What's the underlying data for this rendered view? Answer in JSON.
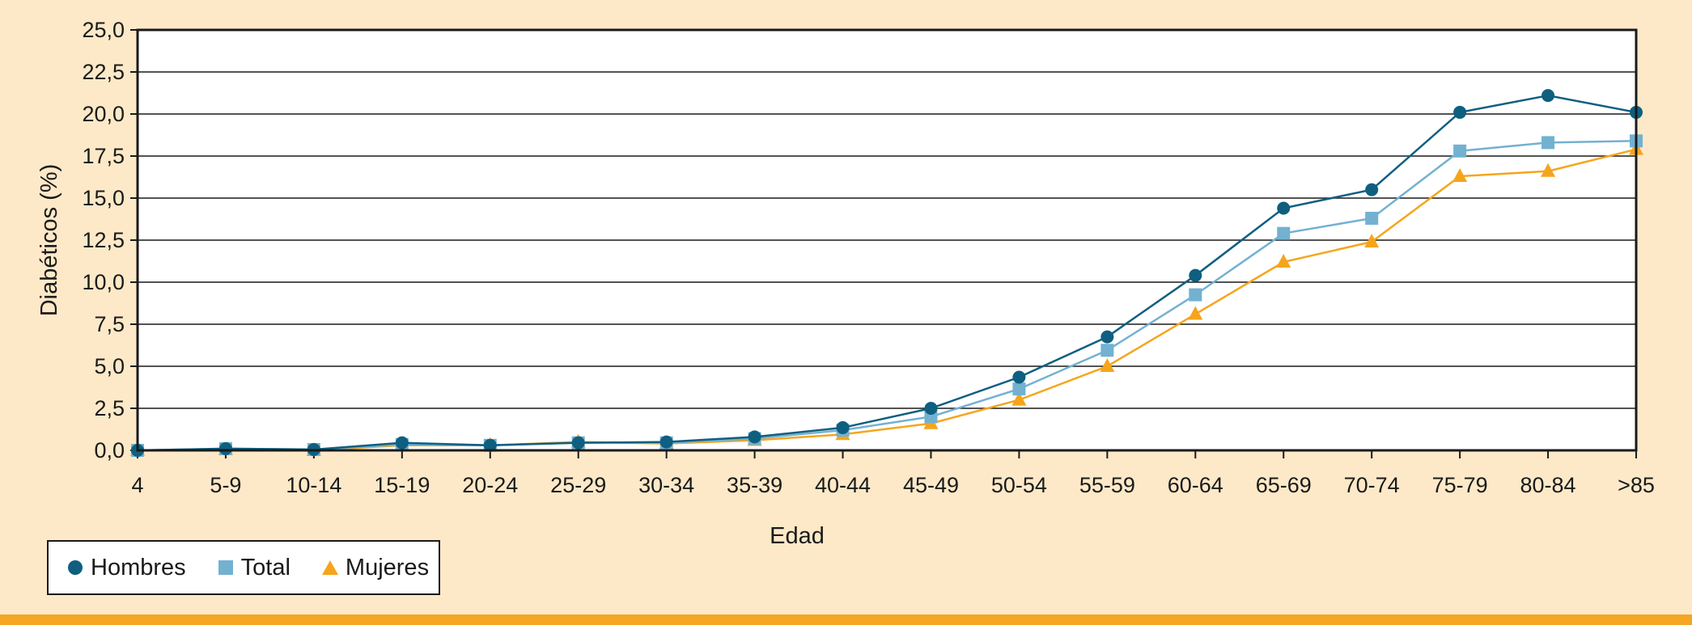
{
  "colors": {
    "background": "#fde9c8",
    "plot_background": "#ffffff",
    "bottom_bar": "#f5a623",
    "series": {
      "Hombres": "#0f5f80",
      "Total": "#73b1d1",
      "Mujeres": "#f5a51c"
    }
  },
  "legend": {
    "items": [
      {
        "label": "Hombres",
        "marker": "circle",
        "color": "#0f5f80"
      },
      {
        "label": "Total",
        "marker": "square",
        "color": "#73b1d1"
      },
      {
        "label": "Mujeres",
        "marker": "triangle",
        "color": "#f5a51c"
      }
    ]
  },
  "chart_data": {
    "type": "line",
    "title": "",
    "xlabel": "Edad",
    "ylabel": "Diabéticos (%)",
    "categories": [
      "4",
      "5-9",
      "10-14",
      "15-19",
      "20-24",
      "25-29",
      "30-34",
      "35-39",
      "40-44",
      "45-49",
      "50-54",
      "55-59",
      "60-64",
      "65-69",
      "70-74",
      "75-79",
      "80-84",
      ">85"
    ],
    "ylim": [
      0,
      25
    ],
    "yticks": [
      "0,0",
      "2,5",
      "5,0",
      "7,5",
      "10,0",
      "12,5",
      "15,0",
      "17,5",
      "20,0",
      "22,5",
      "25,0"
    ],
    "grid": true,
    "legend_position": "bottom-left",
    "series": [
      {
        "name": "Hombres",
        "marker": "circle",
        "color": "#0f5f80",
        "values": [
          0.0,
          0.1,
          0.05,
          0.45,
          0.3,
          0.45,
          0.5,
          0.8,
          1.35,
          2.5,
          4.35,
          6.75,
          10.4,
          14.4,
          15.5,
          20.1,
          21.1,
          20.1
        ]
      },
      {
        "name": "Total",
        "marker": "square",
        "color": "#73b1d1",
        "values": [
          0.0,
          0.1,
          0.05,
          0.35,
          0.3,
          0.45,
          0.45,
          0.7,
          1.2,
          2.0,
          3.65,
          5.95,
          9.25,
          12.9,
          13.8,
          17.8,
          18.3,
          18.4
        ]
      },
      {
        "name": "Mujeres",
        "marker": "triangle",
        "color": "#f5a51c",
        "values": [
          0.0,
          0.05,
          0.0,
          0.3,
          0.3,
          0.5,
          0.4,
          0.6,
          0.95,
          1.6,
          3.0,
          5.0,
          8.1,
          11.2,
          12.4,
          16.3,
          16.6,
          17.9
        ]
      }
    ]
  }
}
